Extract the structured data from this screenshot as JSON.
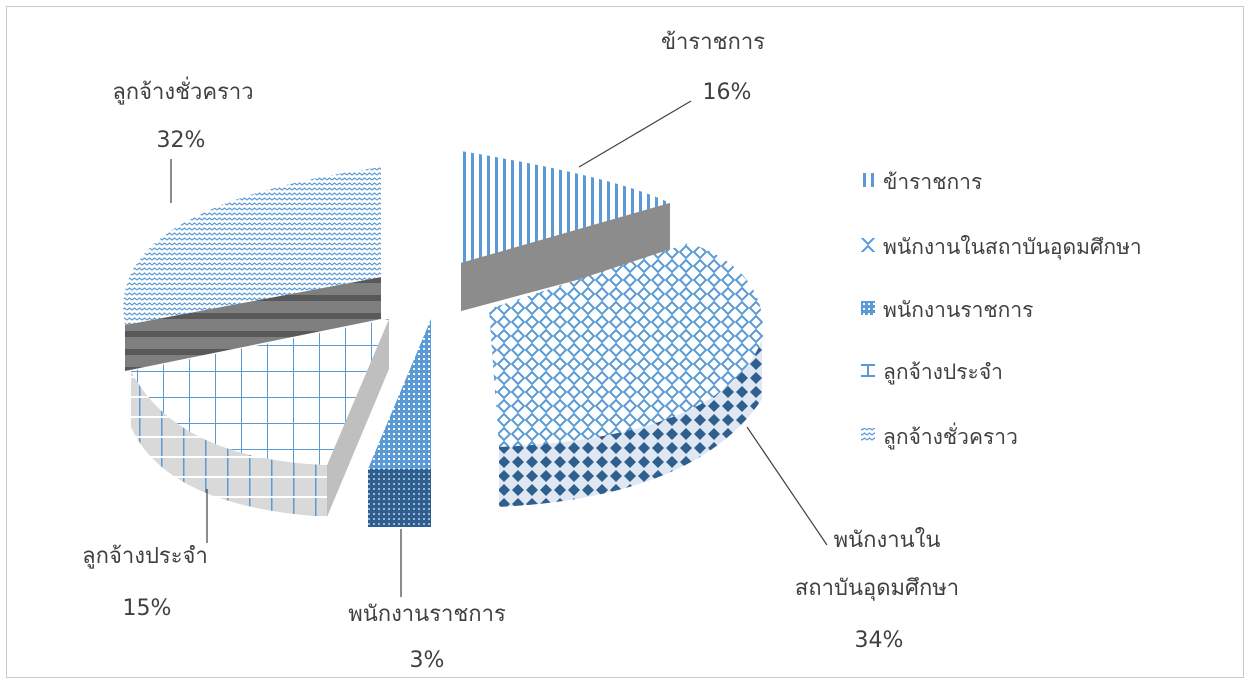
{
  "chart_data": {
    "type": "pie",
    "style": "3d-exploded",
    "categories": [
      "ข้าราชการ",
      "พนักงานในสถาบันอุดมศึกษา",
      "พนักงานราชการ",
      "ลูกจ้างประจำ",
      "ลูกจ้างชั่วคราว"
    ],
    "values": [
      16,
      34,
      3,
      15,
      32
    ],
    "value_format": "percent",
    "legend": {
      "position": "right",
      "entries": [
        "ข้าราชการ",
        "พนักงานในสถาบันอุดมศึกษา",
        "พนักงานราชการ",
        "ลูกจ้างประจำ",
        "ลูกจ้างชั่วคราว"
      ]
    },
    "data_labels": [
      {
        "lines": [
          "ข้าราชการ"
        ],
        "value": "16%"
      },
      {
        "lines": [
          "พนักงานใน",
          "สถาบันอุดมศึกษา"
        ],
        "value": "34%"
      },
      {
        "lines": [
          "พนักงานราชการ"
        ],
        "value": "3%"
      },
      {
        "lines": [
          "ลูกจ้างประจำ"
        ],
        "value": "15%"
      },
      {
        "lines": [
          "ลูกจ้างชั่วคราว"
        ],
        "value": "32%"
      }
    ],
    "colors": {
      "pattern_fg": "#5b9bd5",
      "pattern_bg": "#ffffff",
      "side_dark": "#7f7f7f",
      "side_mid": "#a6a6a6",
      "side_light": "#d9d9d9",
      "text": "#404040"
    },
    "patterns": [
      "vertical-lines",
      "diamond-lattice",
      "dense-grid",
      "crosshatch-grid",
      "zigzag-dots"
    ]
  }
}
